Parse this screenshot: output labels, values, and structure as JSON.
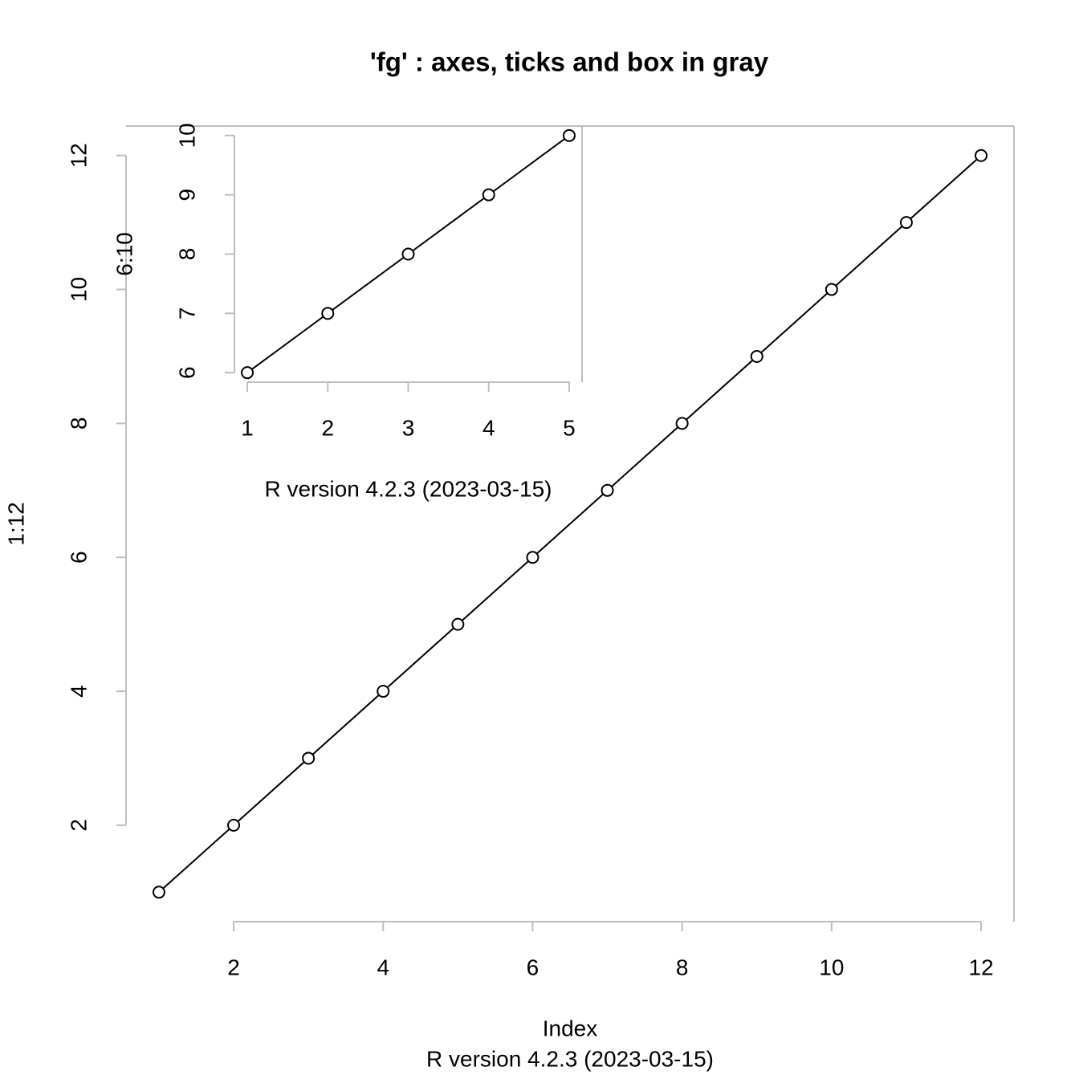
{
  "chart_data": [
    {
      "type": "line",
      "title": "'fg' : axes, ticks and box in gray",
      "x": [
        1,
        2,
        3,
        4,
        5,
        6,
        7,
        8,
        9,
        10,
        11,
        12
      ],
      "values": [
        1,
        2,
        3,
        4,
        5,
        6,
        7,
        8,
        9,
        10,
        11,
        12
      ],
      "xlim": [
        0.56,
        12.44
      ],
      "ylim": [
        0.56,
        12.44
      ],
      "xticks": [
        2,
        4,
        6,
        8,
        10,
        12
      ],
      "yticks": [
        2,
        4,
        6,
        8,
        10,
        12
      ],
      "xlabel": "Index",
      "ylabel": "1:12",
      "subtitle": "R version 4.2.3 (2023-03-15)",
      "axis_color": "#bebebe",
      "color": "#000000"
    },
    {
      "type": "line",
      "x": [
        1,
        2,
        3,
        4,
        5
      ],
      "values": [
        6,
        7,
        8,
        9,
        10
      ],
      "xlim": [
        0.84,
        5.16
      ],
      "ylim": [
        5.84,
        10.16
      ],
      "xticks": [
        1,
        2,
        3,
        4,
        5
      ],
      "yticks": [
        6,
        7,
        8,
        9,
        10
      ],
      "ylabel": "6:10",
      "subtitle": "R version 4.2.3 (2023-03-15)",
      "axis_color": "#bebebe",
      "color": "#000000"
    }
  ]
}
